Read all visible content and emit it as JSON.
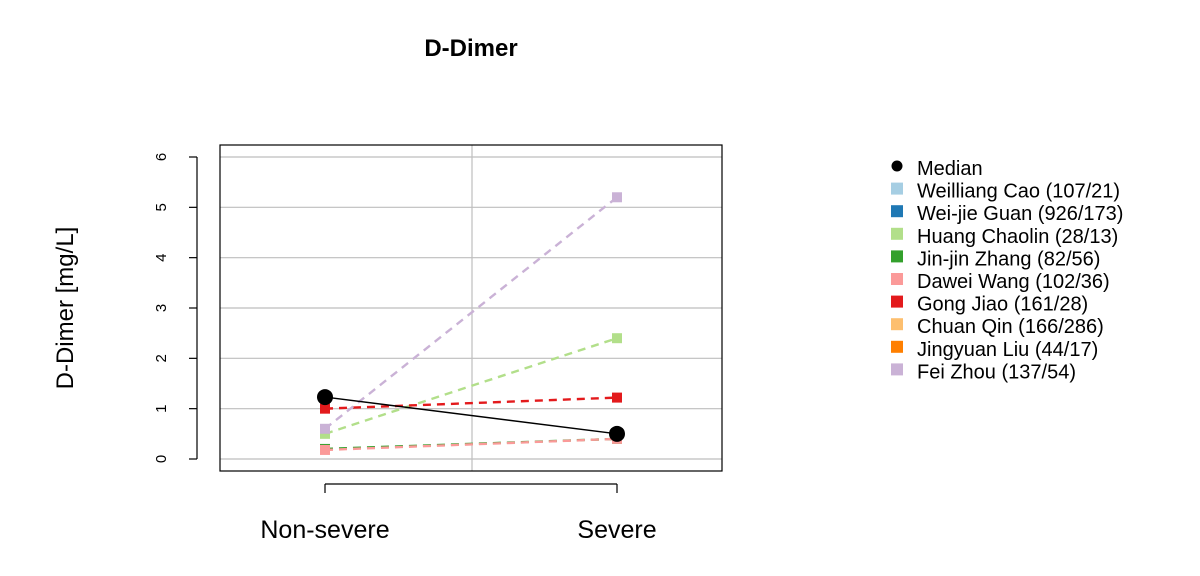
{
  "chart_data": {
    "type": "line",
    "title": "D-Dimer",
    "xlabel": "",
    "ylabel": "D-Dimer [mg/L]",
    "categories": [
      "Non-severe",
      "Severe"
    ],
    "ylim": [
      0,
      6
    ],
    "yticks": [
      "0",
      "1",
      "2",
      "3",
      "4",
      "5",
      "6"
    ],
    "grid": true,
    "legend_position": "right",
    "median": {
      "name": "Median",
      "color": "#000000",
      "values": [
        1.23,
        0.5
      ]
    },
    "series": [
      {
        "name": "Weilliang Cao (107/21)",
        "color": "#A6CEE3",
        "values": [
          null,
          null
        ]
      },
      {
        "name": "Wei-jie Guan (926/173)",
        "color": "#1F78B4",
        "values": [
          null,
          null
        ]
      },
      {
        "name": "Huang Chaolin (28/13)",
        "color": "#B2DF8A",
        "values": [
          0.5,
          2.4
        ]
      },
      {
        "name": "Jin-jin Zhang (82/56)",
        "color": "#33A02C",
        "values": [
          0.2,
          0.4
        ]
      },
      {
        "name": "Dawei Wang (102/36)",
        "color": "#FB9A99",
        "values": [
          0.18,
          0.4
        ]
      },
      {
        "name": "Gong Jiao (161/28)",
        "color": "#E31A1C",
        "values": [
          1.0,
          1.22
        ]
      },
      {
        "name": "Chuan Qin (166/286)",
        "color": "#FDBF6F",
        "values": [
          null,
          null
        ]
      },
      {
        "name": "Jingyuan Liu (44/17)",
        "color": "#FF7F00",
        "values": [
          null,
          null
        ]
      },
      {
        "name": "Fei Zhou (137/54)",
        "color": "#CAB2D6",
        "values": [
          0.6,
          5.2
        ]
      }
    ]
  }
}
